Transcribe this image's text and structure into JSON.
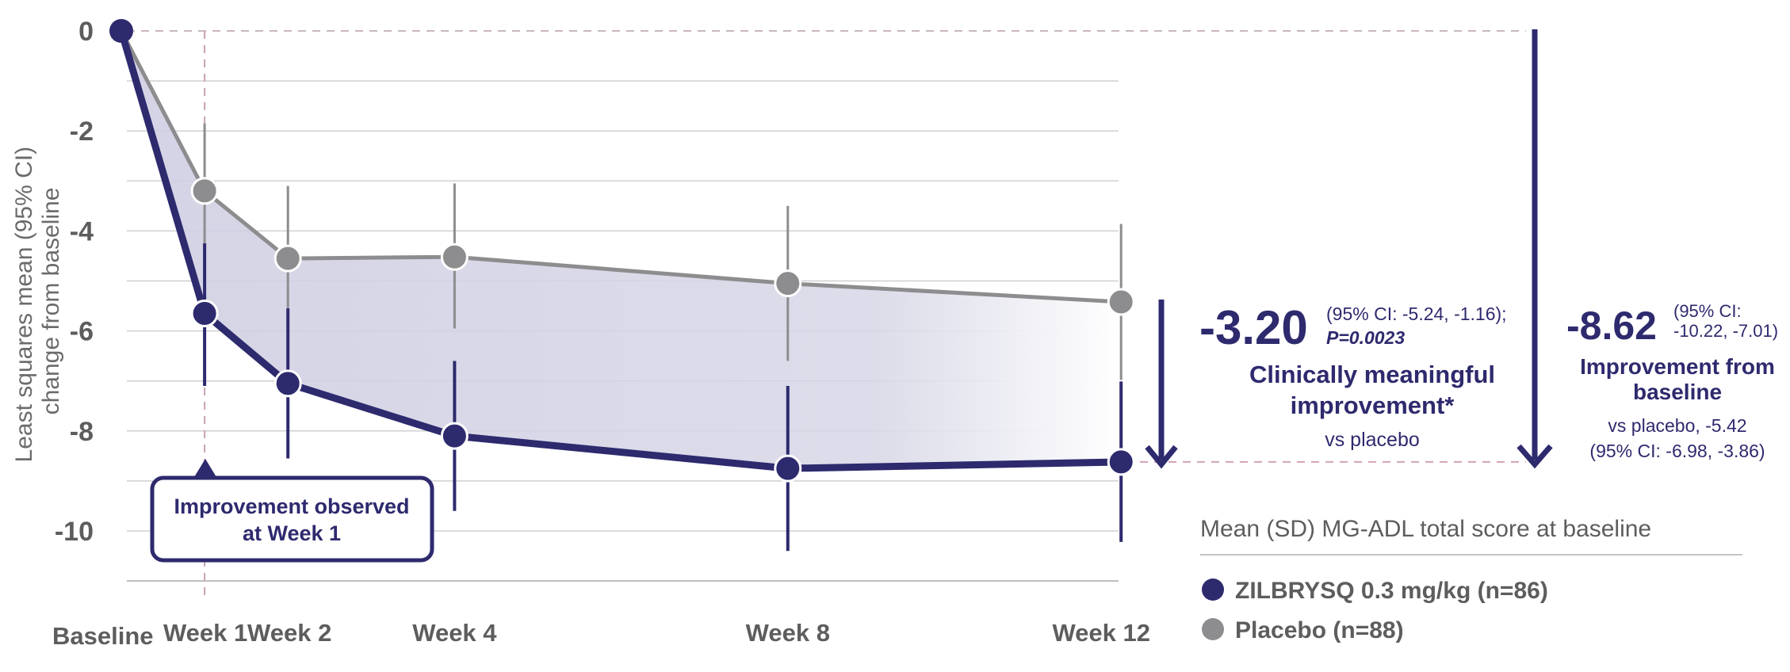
{
  "chart_data": {
    "type": "line",
    "x": [
      "Baseline",
      "Week 1",
      "Week 2",
      "Week 4",
      "Week 8",
      "Week 12"
    ],
    "x_weeks": [
      0,
      1,
      2,
      4,
      8,
      12
    ],
    "ylabel": "Least squares mean (95% CI) change from baseline",
    "ylim": [
      -11.3,
      0
    ],
    "yticks": [
      "0",
      "-2",
      "-4",
      "-6",
      "-8",
      "-10"
    ],
    "ytick_values": [
      0,
      -2,
      -4,
      -6,
      -8,
      -10
    ],
    "grid": true,
    "series": [
      {
        "name": "ZILBRYSQ 0.3 mg/kg (n=86)",
        "color": "#2e2a6e",
        "values": [
          0,
          -5.65,
          -7.05,
          -8.1,
          -8.75,
          -8.62
        ],
        "ci_low": [
          null,
          -7.1,
          -8.55,
          -9.6,
          -10.4,
          -10.22
        ],
        "ci_high": [
          null,
          -4.25,
          -5.55,
          -6.6,
          -7.1,
          -7.01
        ]
      },
      {
        "name": "Placebo (n=88)",
        "color": "#8d8d8f",
        "values": [
          0,
          -3.2,
          -4.55,
          -4.52,
          -5.05,
          -5.42
        ],
        "ci_low": [
          null,
          -4.6,
          -6.0,
          -5.95,
          -6.6,
          -6.98
        ],
        "ci_high": [
          null,
          -1.85,
          -3.1,
          -3.05,
          -3.5,
          -3.86
        ]
      }
    ],
    "annotations": {
      "week1_box_line1": "Improvement observed",
      "week1_box_line2": "at Week 1",
      "diff_value": "-3.20",
      "diff_ci_line1": "(95% CI: -5.24, -1.16);",
      "diff_p": "P=0.0023",
      "diff_label_line1": "Clinically meaningful",
      "diff_label_line2": "improvement*",
      "diff_vs": "vs placebo",
      "base_value": "-8.62",
      "base_ci_line1": "(95% CI:",
      "base_ci_line2": "-10.22, -7.01)",
      "base_label_line1": "Improvement from",
      "base_label_line2": "baseline",
      "base_vs_line1": "vs placebo, -5.42",
      "base_vs_line2": "(95% CI: -6.98, -3.86)"
    },
    "legend": {
      "title": "Mean (SD) MG-ADL total score at baseline",
      "placement": "bottom-right",
      "items": [
        {
          "label": "ZILBRYSQ 0.3 mg/kg (n=86)",
          "color": "#2e2a6e"
        },
        {
          "label": "Placebo (n=88)",
          "color": "#8d8d8f"
        }
      ]
    }
  }
}
